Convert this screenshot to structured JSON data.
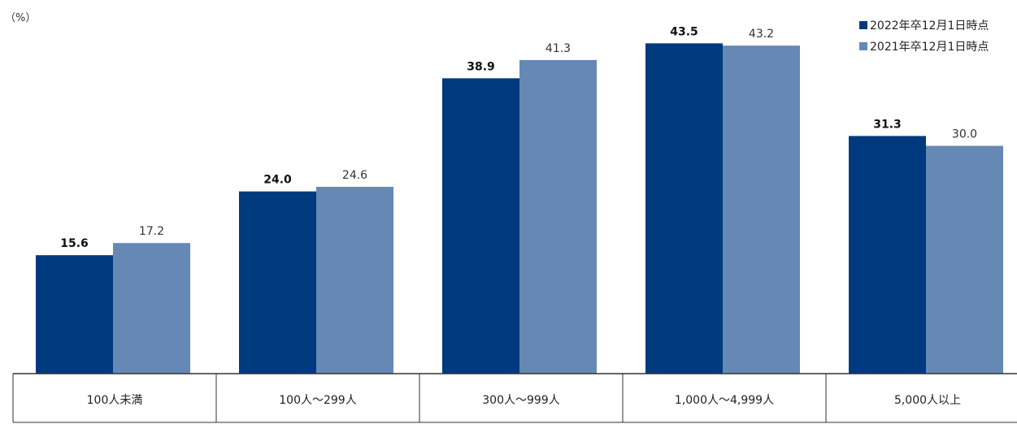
{
  "chart_data": {
    "type": "bar",
    "unit_label": "（%）",
    "categories": [
      "100人未満",
      "100人～299人",
      "300人～999人",
      "1,000人～4,999人",
      "5,000人以上"
    ],
    "series": [
      {
        "name": "2022年卒12月1日時点",
        "values": [
          15.6,
          24.0,
          38.9,
          43.5,
          31.3
        ],
        "color": "#003a7e",
        "labels": [
          "15.6",
          "24.0",
          "38.9",
          "43.5",
          "31.3"
        ]
      },
      {
        "name": "2021年卒12月1日時点",
        "values": [
          17.2,
          24.6,
          41.3,
          43.2,
          30.0
        ],
        "color": "#6688b4",
        "labels": [
          "17.2",
          "24.6",
          "41.3",
          "43.2",
          "30.0"
        ]
      }
    ],
    "ylim": [
      0,
      50
    ],
    "grid": false,
    "legend_position": "top-right"
  }
}
